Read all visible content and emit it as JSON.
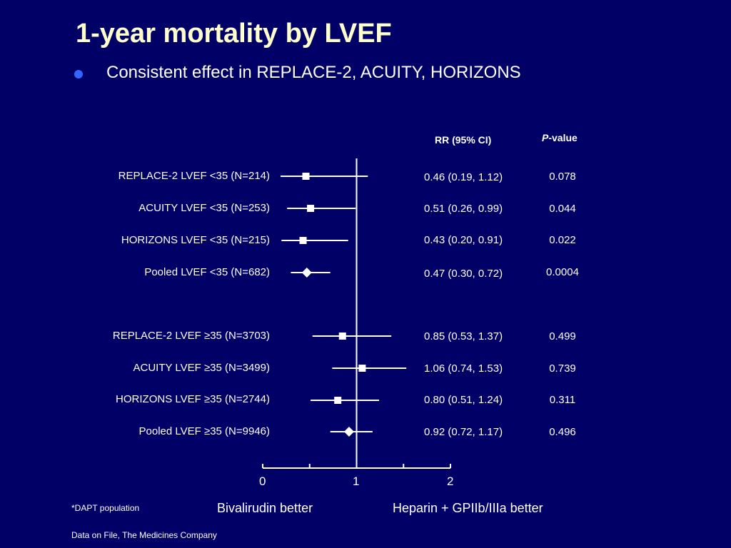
{
  "title": "1-year mortality by LVEF",
  "bullet": "Consistent effect in REPLACE-2, ACUITY, HORIZONS",
  "headers": {
    "rr": "RR (95% CI)",
    "p_italic": "P",
    "p_rest": "-value"
  },
  "footnote": "*DAPT population",
  "source": "Data on File, The Medicines Company",
  "colors": {
    "background": "#000066",
    "title": "#ffffcc",
    "bullet": "#3366ff",
    "marks": "#ffffff"
  },
  "chart_data": {
    "type": "forest",
    "xlim": [
      0,
      2
    ],
    "ticks": [
      "0",
      "1",
      "2"
    ],
    "left_caption": "Bivalirudin better",
    "right_caption": "Heparin + GPIIb/IIIa better",
    "rows": [
      {
        "label": "REPLACE-2 LVEF <35 (N=214)",
        "rr": 0.46,
        "lo": 0.19,
        "hi": 1.12,
        "rr_text": "0.46 (0.19, 1.12)",
        "p": "0.078",
        "marker": "square"
      },
      {
        "label": "ACUITY LVEF <35 (N=253)",
        "rr": 0.51,
        "lo": 0.26,
        "hi": 0.99,
        "rr_text": "0.51 (0.26, 0.99)",
        "p": "0.044",
        "marker": "square"
      },
      {
        "label": "HORIZONS LVEF <35 (N=215)",
        "rr": 0.43,
        "lo": 0.2,
        "hi": 0.91,
        "rr_text": "0.43 (0.20, 0.91)",
        "p": "0.022",
        "marker": "square"
      },
      {
        "label": "Pooled LVEF <35 (N=682)",
        "rr": 0.47,
        "lo": 0.3,
        "hi": 0.72,
        "rr_text": "0.47 (0.30, 0.72)",
        "p": "0.0004",
        "marker": "diamond"
      },
      {
        "label": "REPLACE-2 LVEF ≥35 (N=3703)",
        "rr": 0.85,
        "lo": 0.53,
        "hi": 1.37,
        "rr_text": "0.85 (0.53, 1.37)",
        "p": "0.499",
        "marker": "square"
      },
      {
        "label": "ACUITY LVEF ≥35 (N=3499)",
        "rr": 1.06,
        "lo": 0.74,
        "hi": 1.53,
        "rr_text": "1.06 (0.74, 1.53)",
        "p": "0.739",
        "marker": "square"
      },
      {
        "label": "HORIZONS LVEF ≥35 (N=2744)",
        "rr": 0.8,
        "lo": 0.51,
        "hi": 1.24,
        "rr_text": "0.80 (0.51, 1.24)",
        "p": "0.311",
        "marker": "square"
      },
      {
        "label": "Pooled LVEF ≥35 (N=9946)",
        "rr": 0.92,
        "lo": 0.72,
        "hi": 1.17,
        "rr_text": "0.92 (0.72, 1.17)",
        "p": "0.496",
        "marker": "diamond"
      }
    ]
  }
}
